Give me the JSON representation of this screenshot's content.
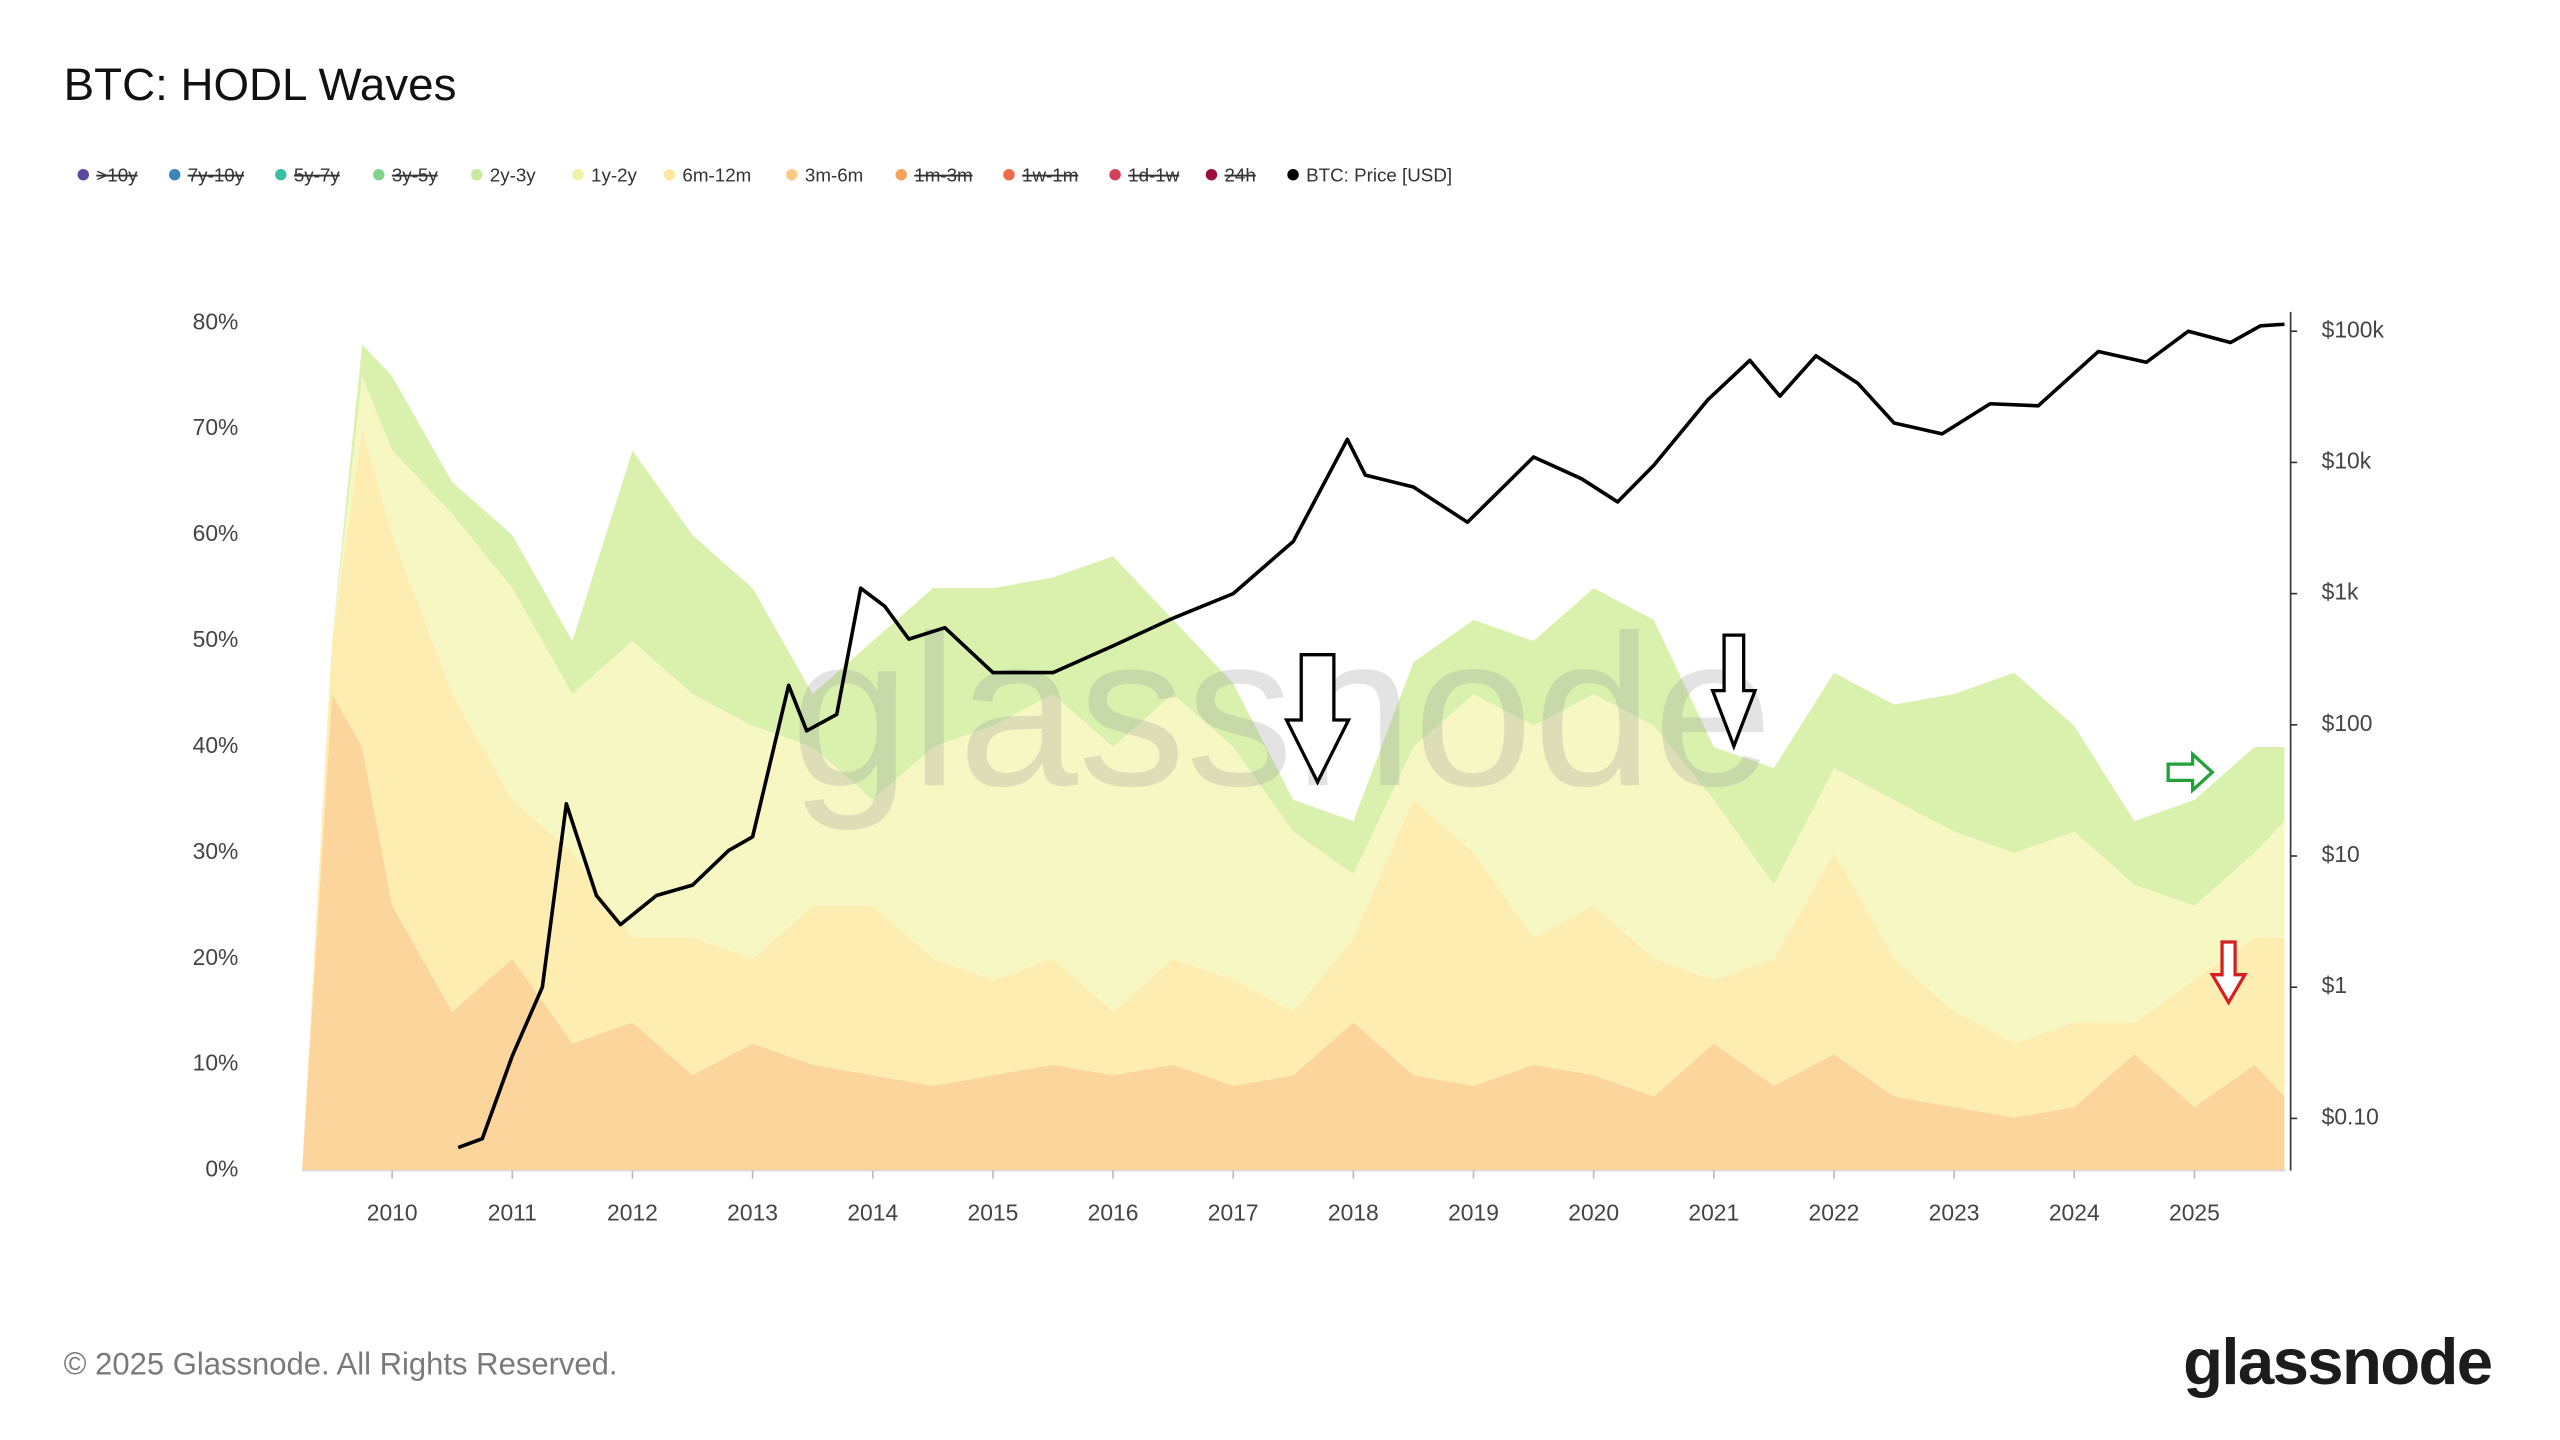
{
  "chart_data": {
    "type": "stacked-area",
    "title": "BTC: HODL Waves",
    "watermark": "glassnode",
    "footer": "© 2025 Glassnode. All Rights Reserved.",
    "logo": "glassnode",
    "x": [
      2009.25,
      2009.5,
      2009.75,
      2010,
      2010.5,
      2011,
      2011.5,
      2012,
      2012.5,
      2013,
      2013.5,
      2014,
      2014.5,
      2015,
      2015.5,
      2016,
      2016.5,
      2017,
      2017.5,
      2018,
      2018.5,
      2019,
      2019.5,
      2020,
      2020.5,
      2021,
      2021.5,
      2022,
      2022.5,
      2023,
      2023.5,
      2024,
      2024.5,
      2025,
      2025.5,
      2025.75
    ],
    "xlim": [
      2009.25,
      2025.76
    ],
    "xticks": [
      2010,
      2011,
      2012,
      2013,
      2014,
      2015,
      2016,
      2017,
      2018,
      2019,
      2020,
      2021,
      2022,
      2023,
      2024,
      2025
    ],
    "ylim": [
      0,
      80
    ],
    "yticks": [
      {
        "value": 0,
        "label": "0%"
      },
      {
        "value": 10,
        "label": "10%"
      },
      {
        "value": 20,
        "label": "20%"
      },
      {
        "value": 30,
        "label": "30%"
      },
      {
        "value": 40,
        "label": "40%"
      },
      {
        "value": 50,
        "label": "50%"
      },
      {
        "value": 60,
        "label": "60%"
      },
      {
        "value": 70,
        "label": "70%"
      },
      {
        "value": 80,
        "label": "80%"
      }
    ],
    "y2_log": true,
    "y2lim": [
      0.04,
      115000
    ],
    "y2ticks": [
      {
        "value": 0.1,
        "label": "$0.10"
      },
      {
        "value": 1,
        "label": "$1"
      },
      {
        "value": 10,
        "label": "$10"
      },
      {
        "value": 100,
        "label": "$100"
      },
      {
        "value": 1000,
        "label": "$1k"
      },
      {
        "value": 10000,
        "label": "$10k"
      },
      {
        "value": 100000,
        "label": "$100k"
      }
    ],
    "series": [
      {
        "name": ">10y",
        "color": "#5b4a9e",
        "visible": false
      },
      {
        "name": "7y-10y",
        "color": "#3a86b8",
        "visible": false
      },
      {
        "name": "5y-7y",
        "color": "#3cbfa4",
        "visible": false
      },
      {
        "name": "3y-5y",
        "color": "#7fd48e",
        "visible": false
      },
      {
        "name": "2y-3y",
        "color": "#c9ea9c",
        "fill": "#d9f1ad",
        "values": [
          0,
          0,
          3,
          7,
          3,
          5,
          5,
          18,
          15,
          13,
          5,
          15,
          15,
          13,
          11,
          18,
          7,
          6,
          3,
          5,
          8,
          7,
          8,
          10,
          10,
          5,
          11,
          9,
          9,
          13,
          17,
          10,
          6,
          10,
          10,
          7
        ]
      },
      {
        "name": "1y-2y",
        "color": "#eef3a8",
        "fill": "#f7f7c4",
        "values": [
          0,
          0,
          5,
          8,
          17,
          20,
          15,
          28,
          23,
          22,
          15,
          10,
          20,
          24,
          25,
          25,
          25,
          22,
          17,
          6,
          5,
          15,
          20,
          20,
          22,
          17,
          7,
          8,
          15,
          17,
          18,
          18,
          13,
          7,
          8,
          11
        ]
      },
      {
        "name": "6m-12m",
        "color": "#fbe7a0",
        "fill": "#fdedb0",
        "values": [
          0,
          5,
          30,
          35,
          30,
          15,
          18,
          8,
          13,
          8,
          15,
          16,
          12,
          9,
          10,
          6,
          10,
          10,
          6,
          8,
          26,
          22,
          12,
          16,
          13,
          6,
          12,
          19,
          13,
          9,
          7,
          8,
          3,
          12,
          12,
          15
        ]
      },
      {
        "name": "3m-6m",
        "color": "#fbcb86",
        "fill": "#fbd59b",
        "values": [
          0,
          45,
          40,
          25,
          15,
          20,
          12,
          14,
          9,
          12,
          10,
          9,
          8,
          9,
          10,
          9,
          10,
          8,
          9,
          14,
          9,
          8,
          10,
          9,
          7,
          12,
          8,
          11,
          7,
          6,
          5,
          6,
          11,
          6,
          10,
          7
        ]
      },
      {
        "name": "1m-3m",
        "color": "#f9a05a",
        "visible": false
      },
      {
        "name": "1w-1m",
        "color": "#ef6a4a",
        "visible": false
      },
      {
        "name": "1d-1w",
        "color": "#d3405a",
        "visible": false
      },
      {
        "name": "24h",
        "color": "#9b0e3e",
        "visible": false
      },
      {
        "name": "BTC: Price [USD]",
        "color": "#000000",
        "axis": "y2",
        "x": [
          2010.55,
          2010.75,
          2011.0,
          2011.25,
          2011.45,
          2011.7,
          2011.9,
          2012.2,
          2012.5,
          2012.8,
          2013.0,
          2013.3,
          2013.45,
          2013.7,
          2013.9,
          2014.1,
          2014.3,
          2014.6,
          2015.0,
          2015.5,
          2016.0,
          2016.5,
          2017.0,
          2017.5,
          2017.95,
          2018.1,
          2018.5,
          2018.95,
          2019.5,
          2019.9,
          2020.2,
          2020.5,
          2020.95,
          2021.3,
          2021.55,
          2021.85,
          2022.2,
          2022.5,
          2022.9,
          2023.3,
          2023.7,
          2024.2,
          2024.6,
          2024.95,
          2025.3,
          2025.55,
          2025.75
        ],
        "values": [
          0.06,
          0.07,
          0.3,
          1,
          25,
          5,
          3,
          5,
          6,
          11,
          14,
          200,
          90,
          120,
          1100,
          800,
          450,
          550,
          250,
          250,
          400,
          650,
          1000,
          2500,
          15000,
          8000,
          6500,
          3500,
          11000,
          7500,
          5000,
          9500,
          30000,
          60000,
          32000,
          65000,
          40000,
          20000,
          16500,
          28000,
          27000,
          70000,
          58000,
          100000,
          82000,
          110000,
          113000
        ]
      }
    ]
  }
}
